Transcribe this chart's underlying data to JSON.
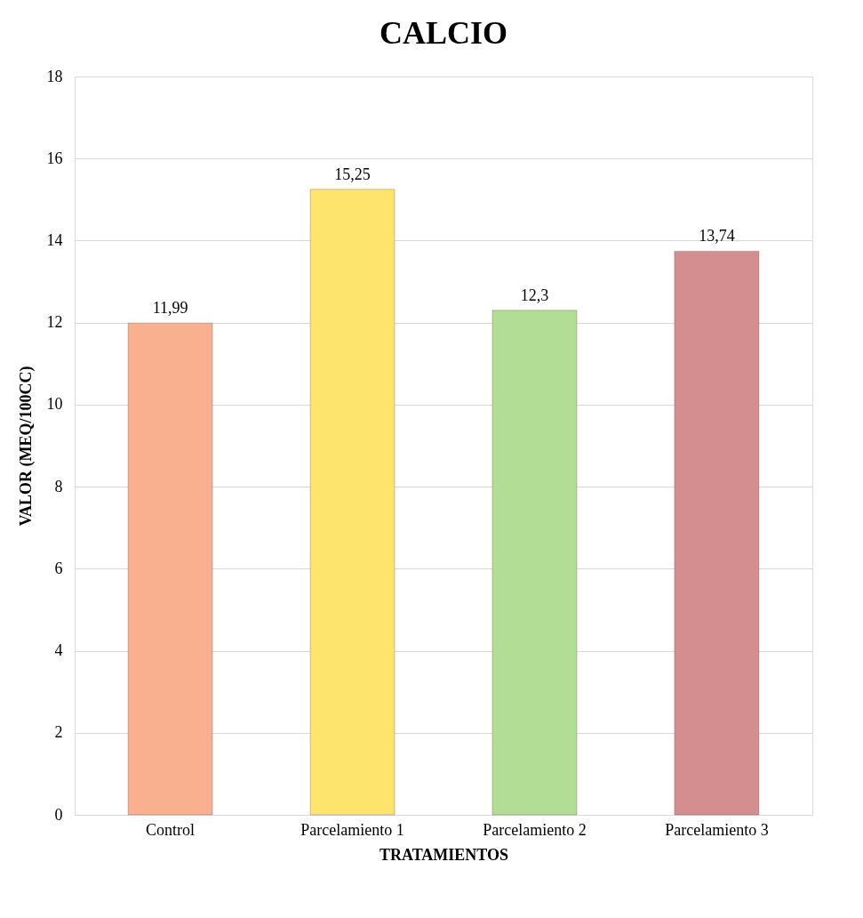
{
  "chart_data": {
    "type": "bar",
    "title": "CALCIO",
    "xlabel": "TRATAMIENTOS",
    "ylabel": "VALOR (MEQ/100CC)",
    "categories": [
      "Control",
      "Parcelamiento 1",
      "Parcelamiento 2",
      "Parcelamiento 3"
    ],
    "values": [
      11.99,
      15.25,
      12.3,
      13.74
    ],
    "colors": [
      "#f9b08e",
      "#fde46c",
      "#b2dd94",
      "#d48e8f"
    ],
    "value_labels": [
      "11,99",
      "15,25",
      "12,3",
      "13,74"
    ],
    "ylim": [
      0,
      18
    ],
    "yticks": [
      0,
      2,
      4,
      6,
      8,
      10,
      12,
      14,
      16,
      18
    ],
    "grid": "y"
  }
}
